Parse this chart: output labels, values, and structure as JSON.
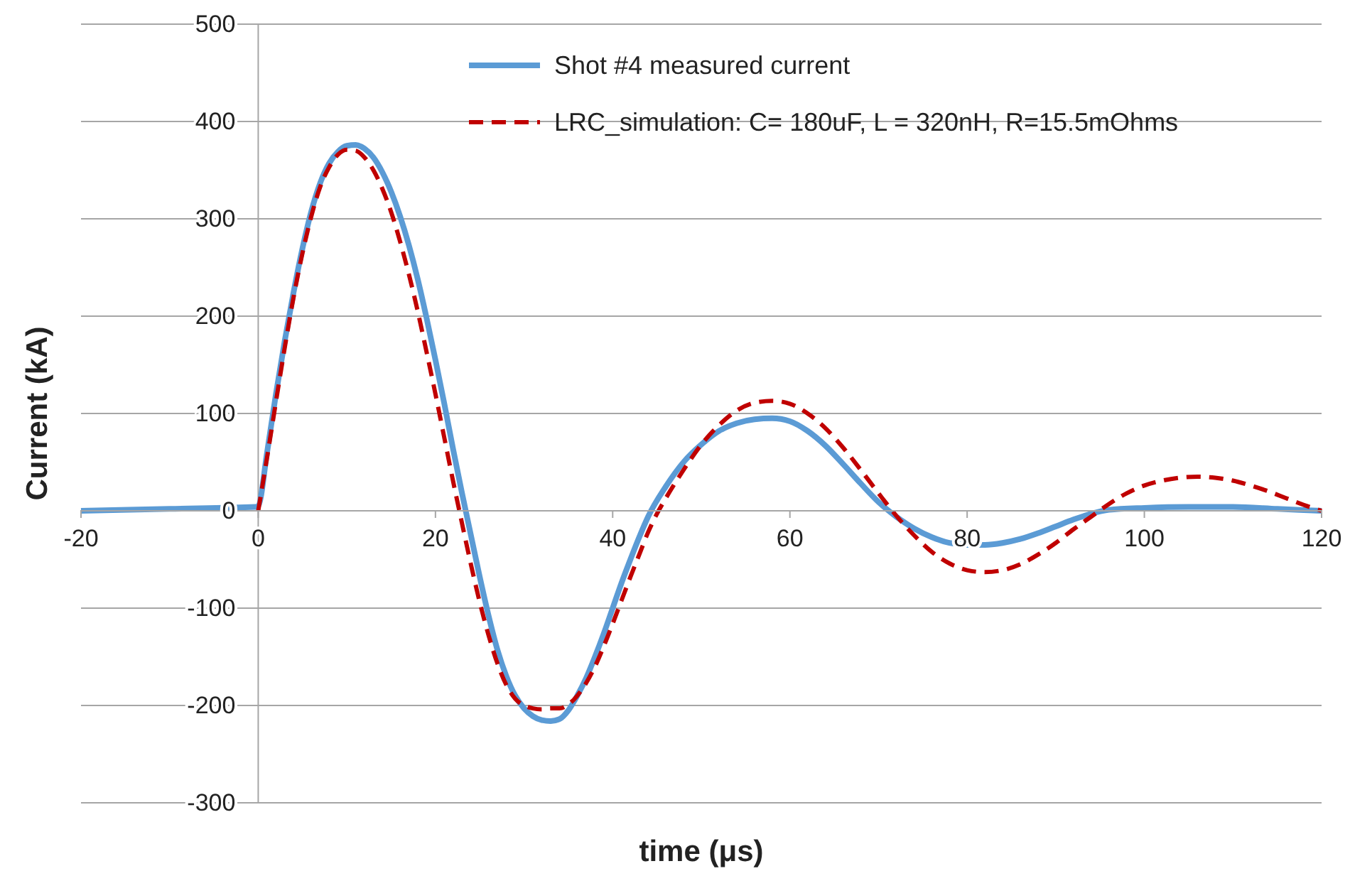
{
  "chart_data": {
    "type": "line",
    "xlabel": "time (μs)",
    "ylabel": "Current (kA)",
    "xlim": [
      -20,
      120
    ],
    "xticks": [
      -20,
      0,
      20,
      40,
      60,
      80,
      100,
      120
    ],
    "ylim": [
      -300,
      500
    ],
    "yticks": [
      -300,
      -200,
      -100,
      0,
      100,
      200,
      300,
      400,
      500
    ],
    "grid": "y",
    "legend": "top right",
    "marker": "none",
    "series": [
      {
        "name": "Shot #4 measured current",
        "color": "#5b9bd5",
        "line_style": "solid",
        "x": [
          -20,
          -10,
          -0.3,
          0,
          1,
          2,
          3,
          4,
          5,
          6,
          7,
          8,
          9,
          10,
          11,
          12,
          13,
          14,
          15,
          16,
          17,
          18,
          19,
          20,
          21,
          22,
          23,
          24,
          25,
          26,
          27,
          28,
          29,
          30,
          31,
          32,
          33,
          34,
          35,
          36,
          37,
          38,
          39,
          40,
          41,
          42,
          43,
          44,
          46,
          48,
          50,
          52,
          54,
          56,
          58,
          60,
          62,
          64,
          66,
          68,
          70,
          72,
          74,
          76,
          78,
          80,
          82,
          84,
          86,
          88,
          90,
          92,
          94,
          96,
          100,
          105,
          110,
          115,
          120
        ],
        "values": [
          0,
          2,
          4,
          5,
          60,
          120,
          175,
          225,
          270,
          308,
          337,
          357,
          369,
          375,
          376,
          372,
          363,
          348,
          328,
          303,
          273,
          238,
          198,
          155,
          110,
          63,
          18,
          -25,
          -68,
          -108,
          -143,
          -170,
          -190,
          -203,
          -211,
          -215,
          -216,
          -214,
          -205,
          -190,
          -172,
          -150,
          -126,
          -100,
          -74,
          -50,
          -27,
          -6,
          25,
          50,
          68,
          82,
          90,
          94,
          95,
          92,
          82,
          67,
          48,
          28,
          9,
          -6,
          -18,
          -27,
          -33,
          -35,
          -35,
          -33,
          -29,
          -23,
          -16,
          -9,
          -3,
          1,
          3,
          4,
          4,
          2,
          0
        ]
      },
      {
        "name": "LRC_simulation: C= 180uF, L = 320nH, R=15.5mOhms",
        "color": "#c00000",
        "line_style": "dashed",
        "x": [
          0,
          1,
          2,
          3,
          4,
          5,
          6,
          7,
          8,
          9,
          10,
          11,
          12,
          13,
          14,
          15,
          16,
          17,
          18,
          19,
          20,
          21,
          22,
          23,
          24,
          25,
          26,
          27,
          28,
          29,
          30,
          31,
          32,
          33,
          34,
          35,
          36,
          37,
          38,
          39,
          40,
          41,
          42,
          43,
          44,
          45,
          46,
          48,
          50,
          52,
          54,
          56,
          58,
          60,
          62,
          64,
          66,
          68,
          70,
          72,
          74,
          76,
          78,
          80,
          82,
          84,
          86,
          88,
          90,
          92,
          94,
          96,
          98,
          100,
          102,
          104,
          106,
          108,
          110,
          112,
          114,
          116,
          118,
          120
        ],
        "values": [
          0,
          55,
          112,
          168,
          220,
          265,
          303,
          333,
          353,
          366,
          371,
          370,
          363,
          350,
          331,
          307,
          277,
          243,
          205,
          163,
          120,
          75,
          30,
          -13,
          -55,
          -94,
          -128,
          -157,
          -179,
          -193,
          -200,
          -203,
          -204,
          -203,
          -203,
          -199,
          -190,
          -177,
          -160,
          -139,
          -116,
          -92,
          -68,
          -45,
          -22,
          -3,
          13,
          42,
          68,
          88,
          103,
          111,
          113,
          110,
          100,
          85,
          65,
          42,
          18,
          -5,
          -25,
          -42,
          -54,
          -61,
          -63,
          -61,
          -55,
          -45,
          -33,
          -19,
          -6,
          7,
          18,
          26,
          31,
          34,
          35,
          34,
          31,
          26,
          20,
          13,
          6,
          0
        ]
      }
    ]
  }
}
